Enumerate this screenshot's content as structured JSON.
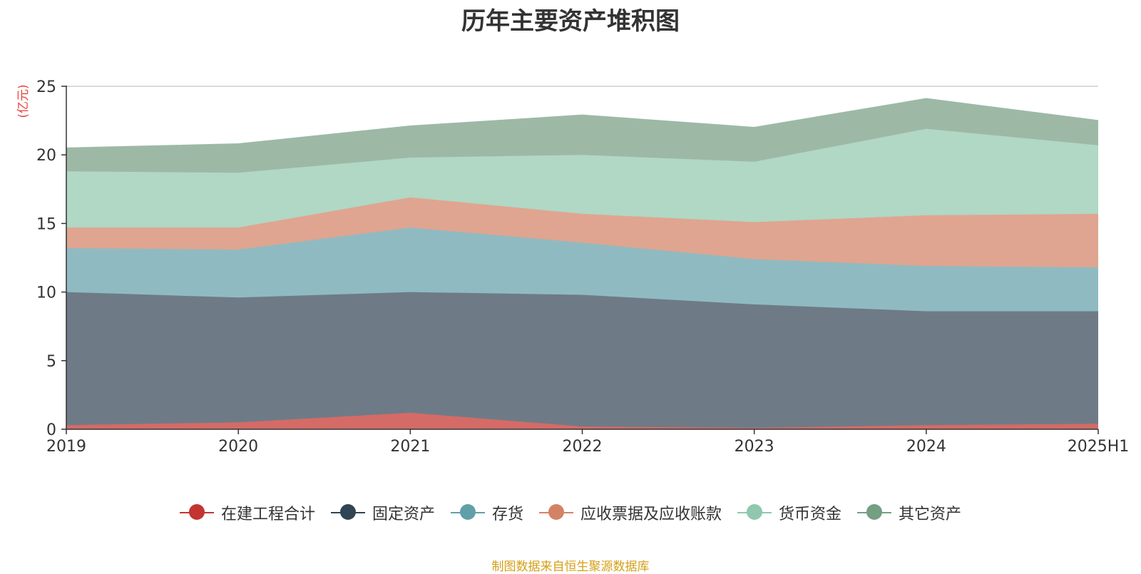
{
  "chart_data": {
    "type": "area",
    "stacked": true,
    "title": "历年主要资产堆积图",
    "ylabel": "(亿元)",
    "categories": [
      "2019",
      "2020",
      "2021",
      "2022",
      "2023",
      "2024",
      "2025H1"
    ],
    "ylim": [
      0,
      25
    ],
    "yticks": [
      0,
      5,
      10,
      15,
      20,
      25
    ],
    "grid": true,
    "legend_position": "bottom",
    "series": [
      {
        "name": "在建工程合计",
        "color": "#c23531",
        "area_color": "#d46b67",
        "values": [
          0.3,
          0.5,
          1.2,
          0.2,
          0.1,
          0.3,
          0.4
        ]
      },
      {
        "name": "固定资产",
        "color": "#2f4554",
        "area_color": "#6e7b87",
        "values": [
          9.7,
          9.1,
          8.8,
          9.6,
          9.0,
          8.3,
          8.2
        ]
      },
      {
        "name": "存货",
        "color": "#61a0a8",
        "area_color": "#90bac1",
        "values": [
          3.2,
          3.5,
          4.7,
          3.8,
          3.3,
          3.3,
          3.2
        ]
      },
      {
        "name": "应收票据及应收账款",
        "color": "#d48265",
        "area_color": "#dfa590",
        "values": [
          1.5,
          1.6,
          2.2,
          2.1,
          2.7,
          3.7,
          3.9
        ]
      },
      {
        "name": "货币资金",
        "color": "#91c7ae",
        "area_color": "#b1d7c5",
        "values": [
          4.1,
          4.0,
          2.9,
          4.3,
          4.4,
          6.3,
          5.0
        ]
      },
      {
        "name": "其它资产",
        "color": "#749f83",
        "area_color": "#9db9a5",
        "values": [
          1.7,
          2.1,
          2.3,
          2.9,
          2.5,
          2.2,
          1.8
        ]
      }
    ]
  },
  "footer": "制图数据来自恒生聚源数据库"
}
